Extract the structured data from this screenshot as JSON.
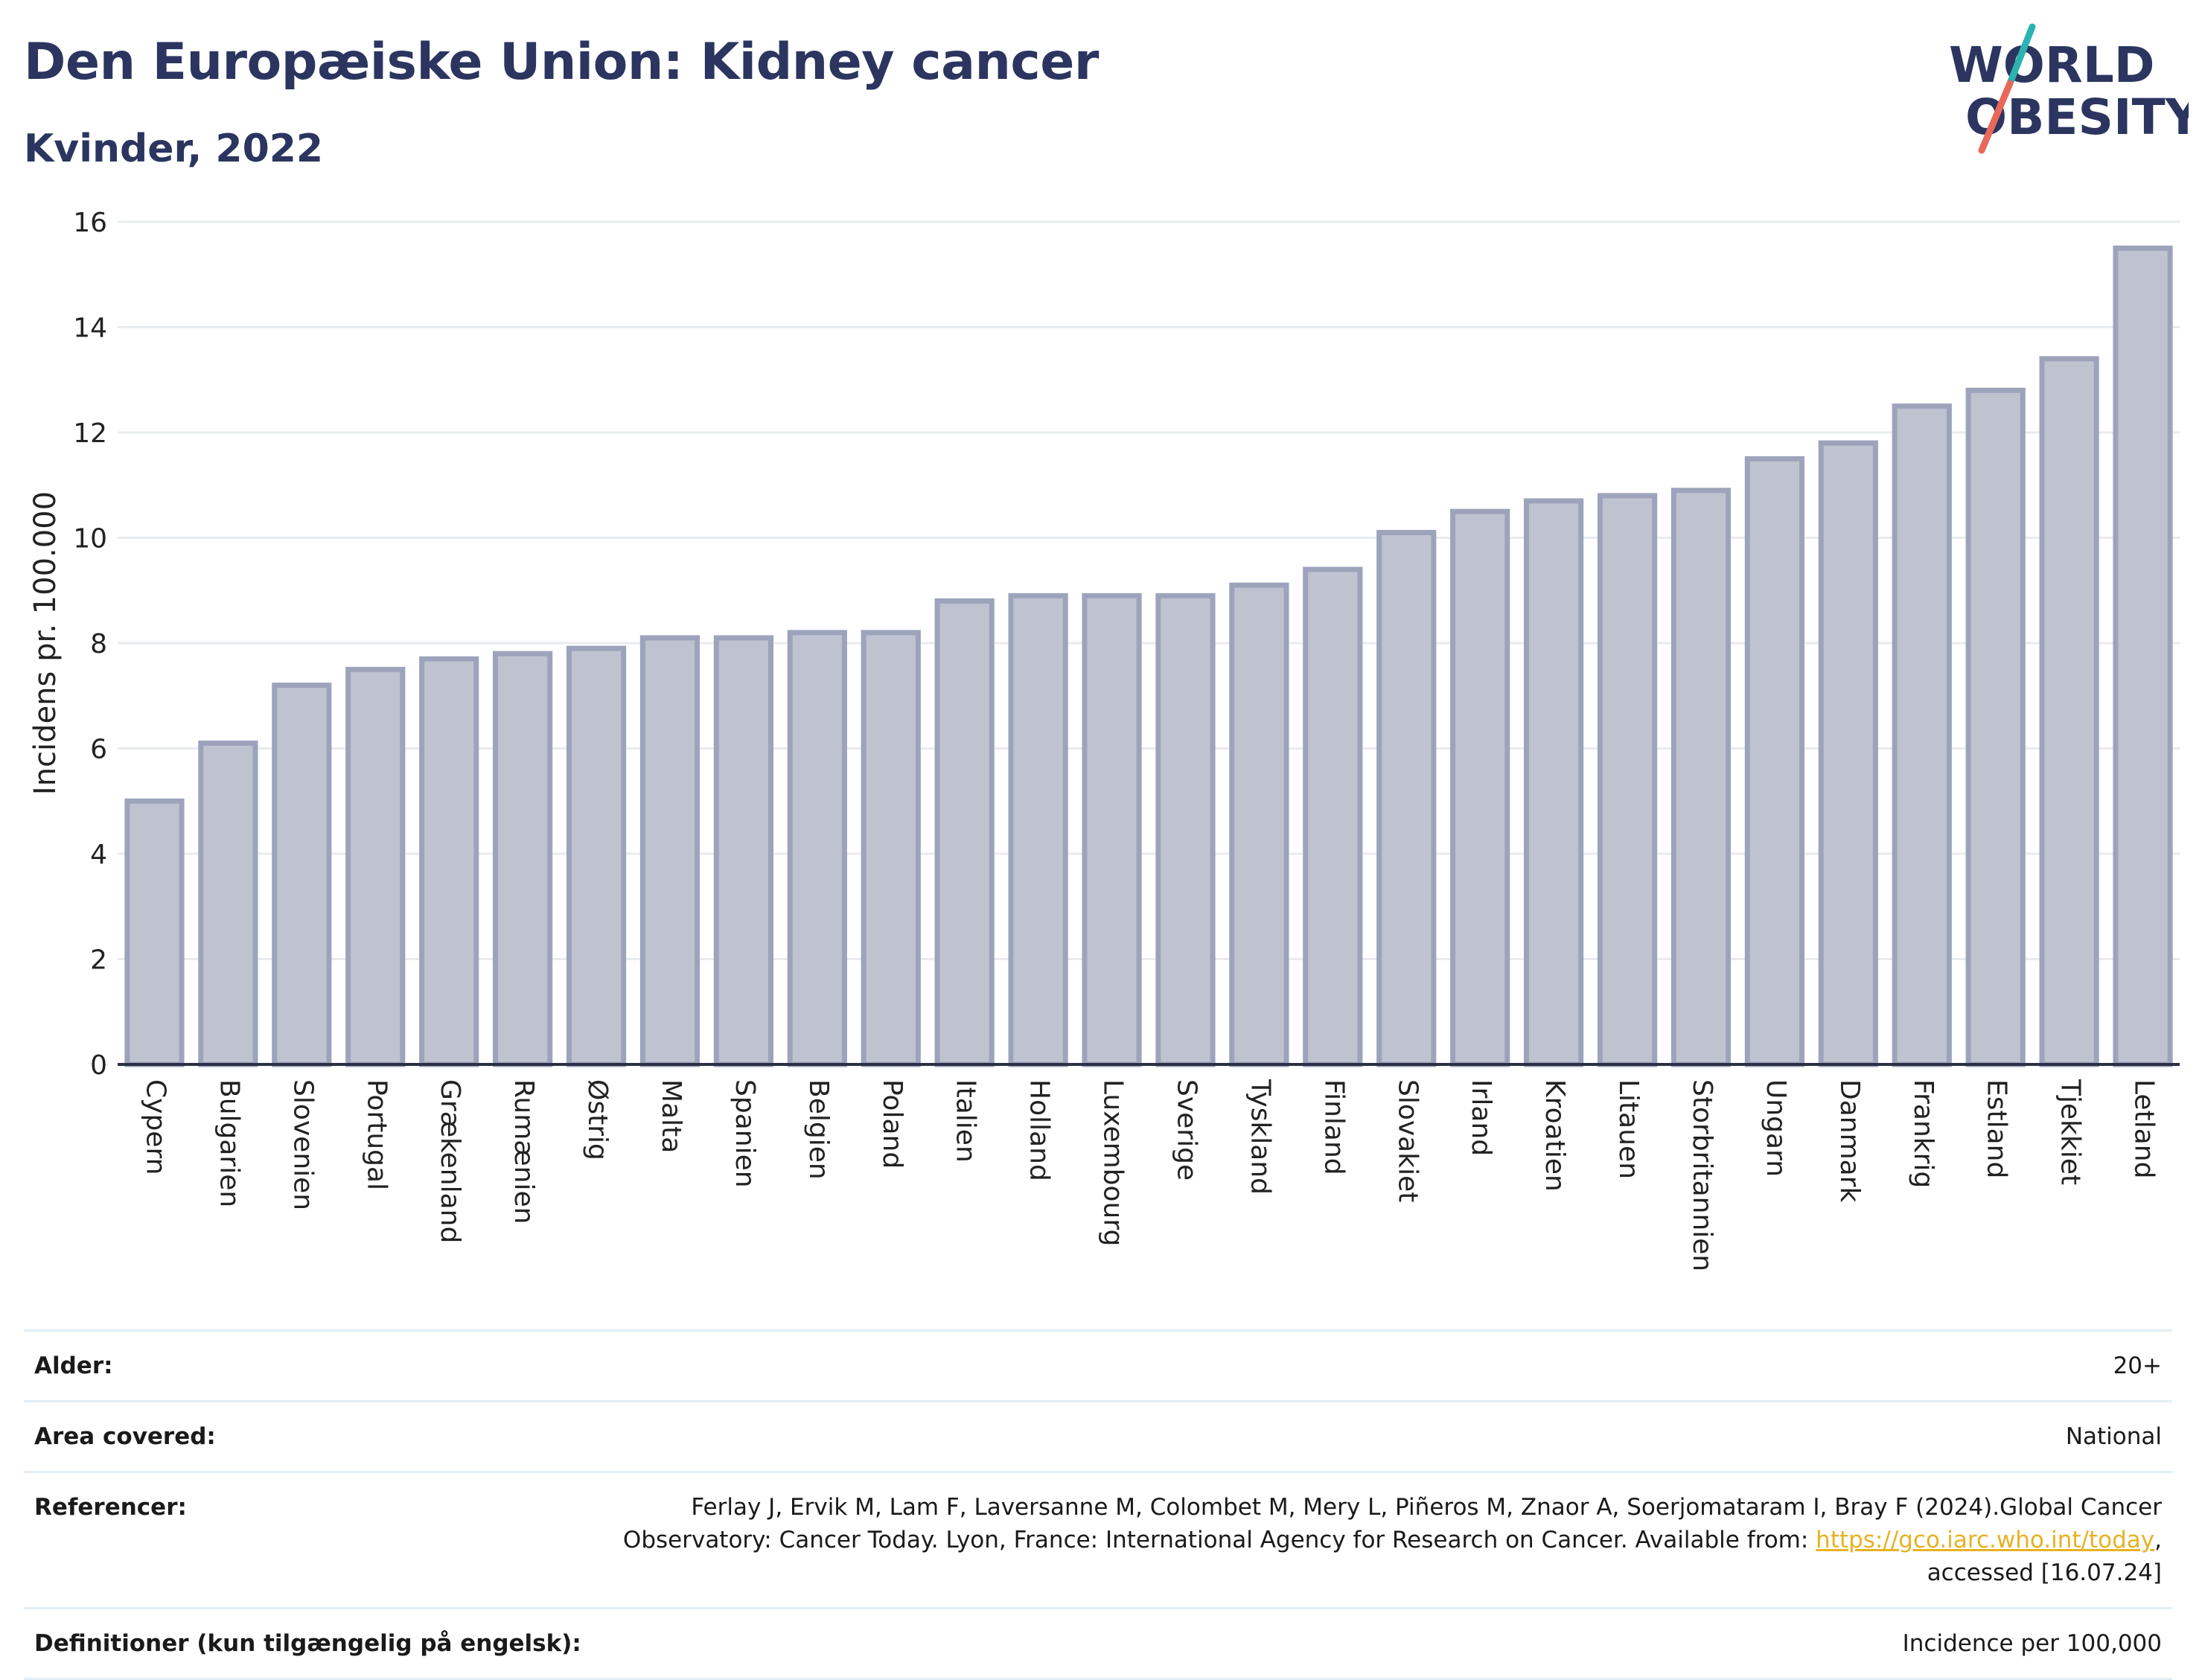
{
  "header": {
    "title": "Den Europæiske Union: Kidney cancer",
    "subtitle": "Kvinder, 2022"
  },
  "logo": {
    "line1": "WORLD",
    "line2": "OBESITY",
    "colors": {
      "text": "#2b3560",
      "slash_teal": "#2bb3b1",
      "slash_coral": "#e8685a"
    }
  },
  "chart_data": {
    "type": "bar",
    "ylabel": "Incidens pr. 100.000",
    "xlabel": "",
    "ylim": [
      0,
      16
    ],
    "yticks": [
      0,
      2,
      4,
      6,
      8,
      10,
      12,
      14,
      16
    ],
    "grid": true,
    "bar_color": "#bfc3d0",
    "bar_edge_color": "#9ea3bc",
    "categories": [
      "Cypern",
      "Bulgarien",
      "Slovenien",
      "Portugal",
      "Grækenland",
      "Rumænien",
      "Østrig",
      "Malta",
      "Spanien",
      "Belgien",
      "Poland",
      "Italien",
      "Holland",
      "Luxembourg",
      "Sverige",
      "Tyskland",
      "Finland",
      "Slovakiet",
      "Irland",
      "Kroatien",
      "Litauen",
      "Storbritannien",
      "Ungarn",
      "Danmark",
      "Frankrig",
      "Estland",
      "Tjekkiet",
      "Letland"
    ],
    "values": [
      5.0,
      6.1,
      7.2,
      7.5,
      7.7,
      7.8,
      7.9,
      8.1,
      8.1,
      8.2,
      8.2,
      8.8,
      8.9,
      8.9,
      8.9,
      9.1,
      9.4,
      10.1,
      10.5,
      10.7,
      10.8,
      10.9,
      11.5,
      11.8,
      12.5,
      12.8,
      13.4,
      15.5
    ]
  },
  "meta": {
    "age_label": "Alder:",
    "age_value": "20+",
    "area_label": "Area covered:",
    "area_value": "National",
    "ref_label": "Referencer:",
    "ref_text_1": "Ferlay J, Ervik M, Lam F, Laversanne M, Colombet M, Mery L, Piñeros M, Znaor A, Soerjomataram I, Bray F (2024).Global Cancer Observatory: Cancer Today. Lyon, France: International Agency for Research on Cancer. Available from: ",
    "ref_link": "https://gco.iarc.who.int/today",
    "ref_text_2": ", accessed [16.07.24]",
    "def_label": "Definitioner (kun tilgængelig på engelsk):",
    "def_value": "Incidence per 100,000"
  }
}
